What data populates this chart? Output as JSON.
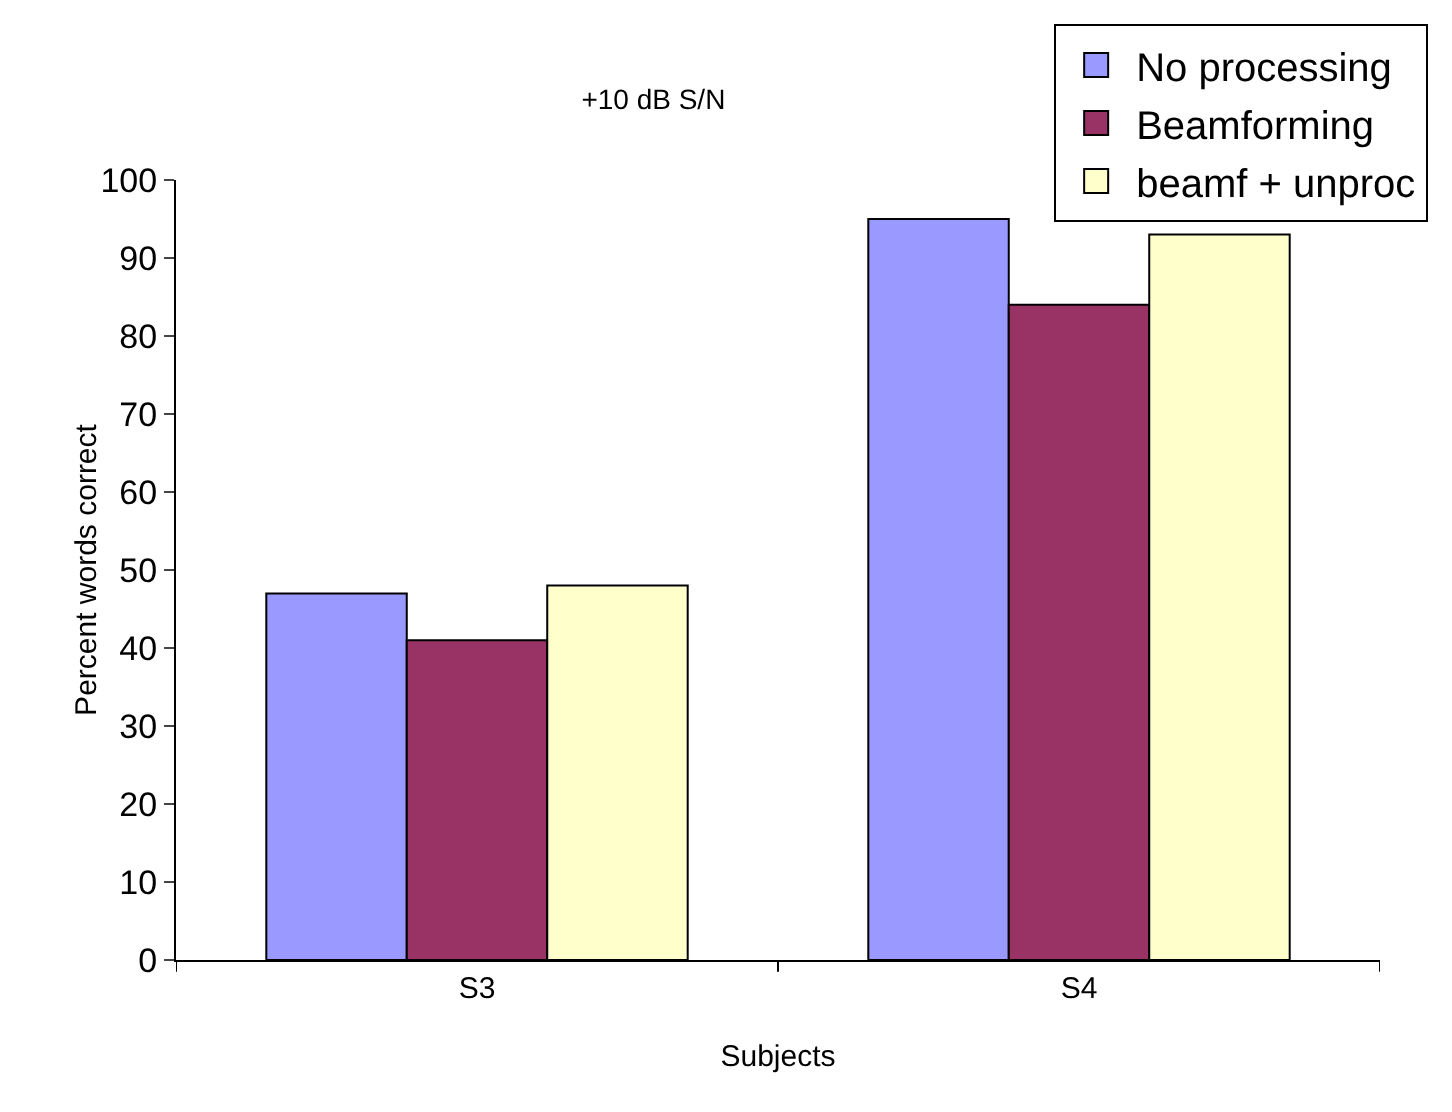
{
  "chart_data": {
    "type": "bar",
    "title": "+10 dB S/N",
    "xlabel": "Subjects",
    "ylabel": "Percent words correct",
    "categories": [
      "S3",
      "S4"
    ],
    "series": [
      {
        "name": "No processing",
        "color": "#9999ff",
        "values": [
          47,
          95
        ]
      },
      {
        "name": "Beamforming",
        "color": "#993366",
        "values": [
          41,
          84
        ]
      },
      {
        "name": "beamf + unproc",
        "color": "#ffffcc",
        "values": [
          48,
          93
        ]
      }
    ],
    "ylim": [
      0,
      100
    ],
    "yticks": [
      0,
      10,
      20,
      30,
      40,
      50,
      60,
      70,
      80,
      90,
      100
    ],
    "grid": false,
    "legend": "top right"
  }
}
